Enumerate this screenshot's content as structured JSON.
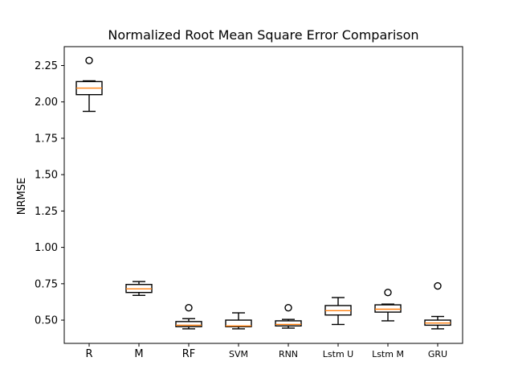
{
  "chart_data": {
    "type": "boxplot",
    "title": "Normalized Root Mean Square Error Comparison",
    "xlabel": "",
    "ylabel": "NRMSE",
    "ylim": [
      0.34,
      2.38
    ],
    "yticks": [
      0.5,
      0.75,
      1.0,
      1.25,
      1.5,
      1.75,
      2.0,
      2.25
    ],
    "ytick_labels": [
      "0.50",
      "0.75",
      "1.00",
      "1.25",
      "1.50",
      "1.75",
      "2.00",
      "2.25"
    ],
    "grid": false,
    "categories": [
      "R",
      "M",
      "RF",
      "SVM",
      "RNN",
      "Lstm U",
      "Lstm M",
      "GRU"
    ],
    "boxes": [
      {
        "label": "R",
        "whisker_low": 1.935,
        "q1": 2.05,
        "median": 2.095,
        "q3": 2.14,
        "whisker_high": 2.145,
        "fliers": [
          2.285
        ]
      },
      {
        "label": "M",
        "whisker_low": 0.67,
        "q1": 0.69,
        "median": 0.715,
        "q3": 0.745,
        "whisker_high": 0.765,
        "fliers": []
      },
      {
        "label": "RF",
        "whisker_low": 0.44,
        "q1": 0.455,
        "median": 0.465,
        "q3": 0.49,
        "whisker_high": 0.51,
        "fliers": [
          0.585
        ]
      },
      {
        "label": "SVM",
        "whisker_low": 0.44,
        "q1": 0.455,
        "median": 0.46,
        "q3": 0.5,
        "whisker_high": 0.55,
        "fliers": []
      },
      {
        "label": "RNN",
        "whisker_low": 0.445,
        "q1": 0.46,
        "median": 0.47,
        "q3": 0.495,
        "whisker_high": 0.505,
        "fliers": [
          0.585
        ]
      },
      {
        "label": "Lstm U",
        "whisker_low": 0.47,
        "q1": 0.535,
        "median": 0.565,
        "q3": 0.6,
        "whisker_high": 0.655,
        "fliers": []
      },
      {
        "label": "Lstm M",
        "whisker_low": 0.495,
        "q1": 0.555,
        "median": 0.575,
        "q3": 0.605,
        "whisker_high": 0.61,
        "fliers": [
          0.69
        ]
      },
      {
        "label": "GRU",
        "whisker_low": 0.44,
        "q1": 0.465,
        "median": 0.48,
        "q3": 0.5,
        "whisker_high": 0.525,
        "fliers": [
          0.735
        ]
      }
    ]
  }
}
